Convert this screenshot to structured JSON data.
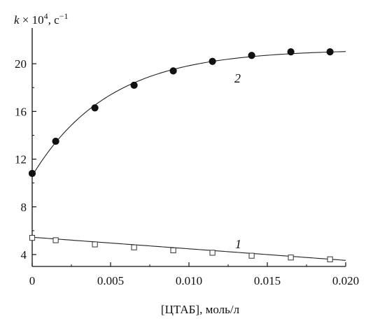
{
  "chart_data": {
    "type": "scatter",
    "ylabel": {
      "k": "k",
      "times": " × 10",
      "exp": "4",
      "unit": ", с",
      "unit_exp": "−1"
    },
    "xlabel": "[ЦТАБ], моль/л",
    "xlim": [
      0,
      0.02
    ],
    "ylim": [
      3,
      23
    ],
    "x_ticks": [
      {
        "value": 0,
        "label": "0"
      },
      {
        "value": 0.005,
        "label": "0.005"
      },
      {
        "value": 0.01,
        "label": "0.010"
      },
      {
        "value": 0.015,
        "label": "0.015"
      },
      {
        "value": 0.02,
        "label": "0.020"
      }
    ],
    "y_ticks": [
      {
        "value": 4,
        "label": "4"
      },
      {
        "value": 8,
        "label": "8"
      },
      {
        "value": 12,
        "label": "12"
      },
      {
        "value": 16,
        "label": "16"
      },
      {
        "value": 20,
        "label": "20"
      }
    ],
    "grid": false,
    "series": [
      {
        "tag": "1",
        "marker": "open-square",
        "x": [
          0,
          0.0015,
          0.004,
          0.0065,
          0.009,
          0.0115,
          0.014,
          0.0165,
          0.019
        ],
        "y": [
          5.4,
          5.2,
          4.85,
          4.6,
          4.35,
          4.15,
          3.9,
          3.75,
          3.6
        ],
        "fit": {
          "kind": "linear",
          "y0": 5.45,
          "slope": -97
        }
      },
      {
        "tag": "2",
        "marker": "filled-circle",
        "x": [
          0,
          0.0015,
          0.004,
          0.0065,
          0.009,
          0.0115,
          0.014,
          0.0165,
          0.019
        ],
        "y": [
          10.8,
          13.5,
          16.3,
          18.2,
          19.4,
          20.2,
          20.7,
          21.0,
          21.0
        ],
        "fit": {
          "kind": "exp-saturation",
          "a": 21.2,
          "b": 10.6,
          "k": 205
        }
      }
    ]
  }
}
